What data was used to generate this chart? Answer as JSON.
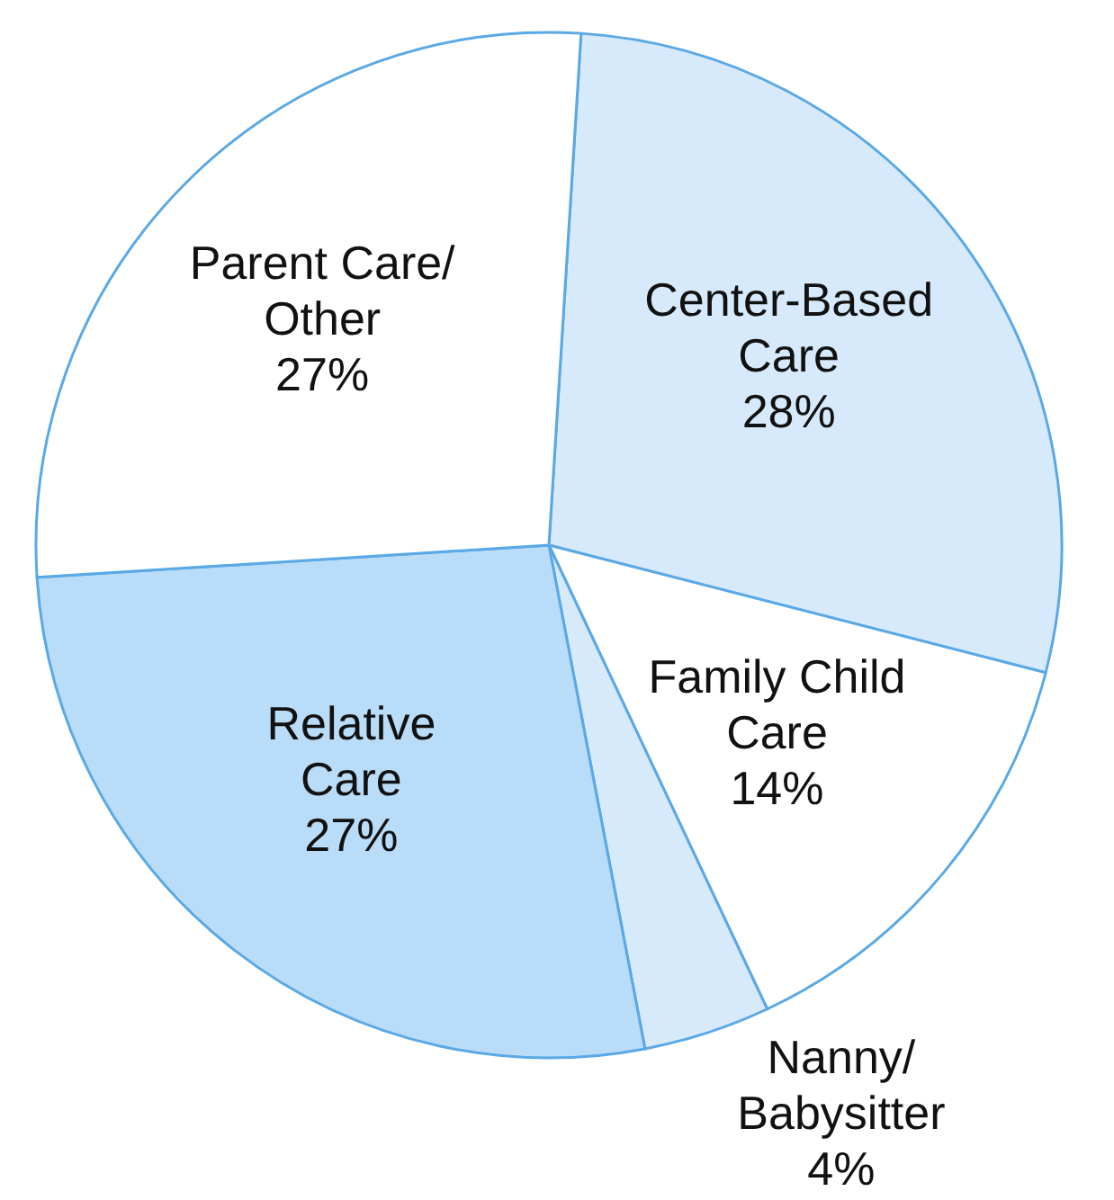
{
  "chart_data": {
    "type": "pie",
    "categories": [
      "Center-Based Care",
      "Family Child Care",
      "Nanny/Babysitter",
      "Relative Care",
      "Parent Care/Other"
    ],
    "values": [
      28,
      14,
      4,
      27,
      27
    ],
    "colors": [
      "#d7eafb",
      "#ffffff",
      "#d7eafb",
      "#b9dcf8",
      "#ffffff"
    ],
    "value_labels": [
      "28%",
      "14%",
      "4%",
      "27%",
      "27%"
    ]
  }
}
